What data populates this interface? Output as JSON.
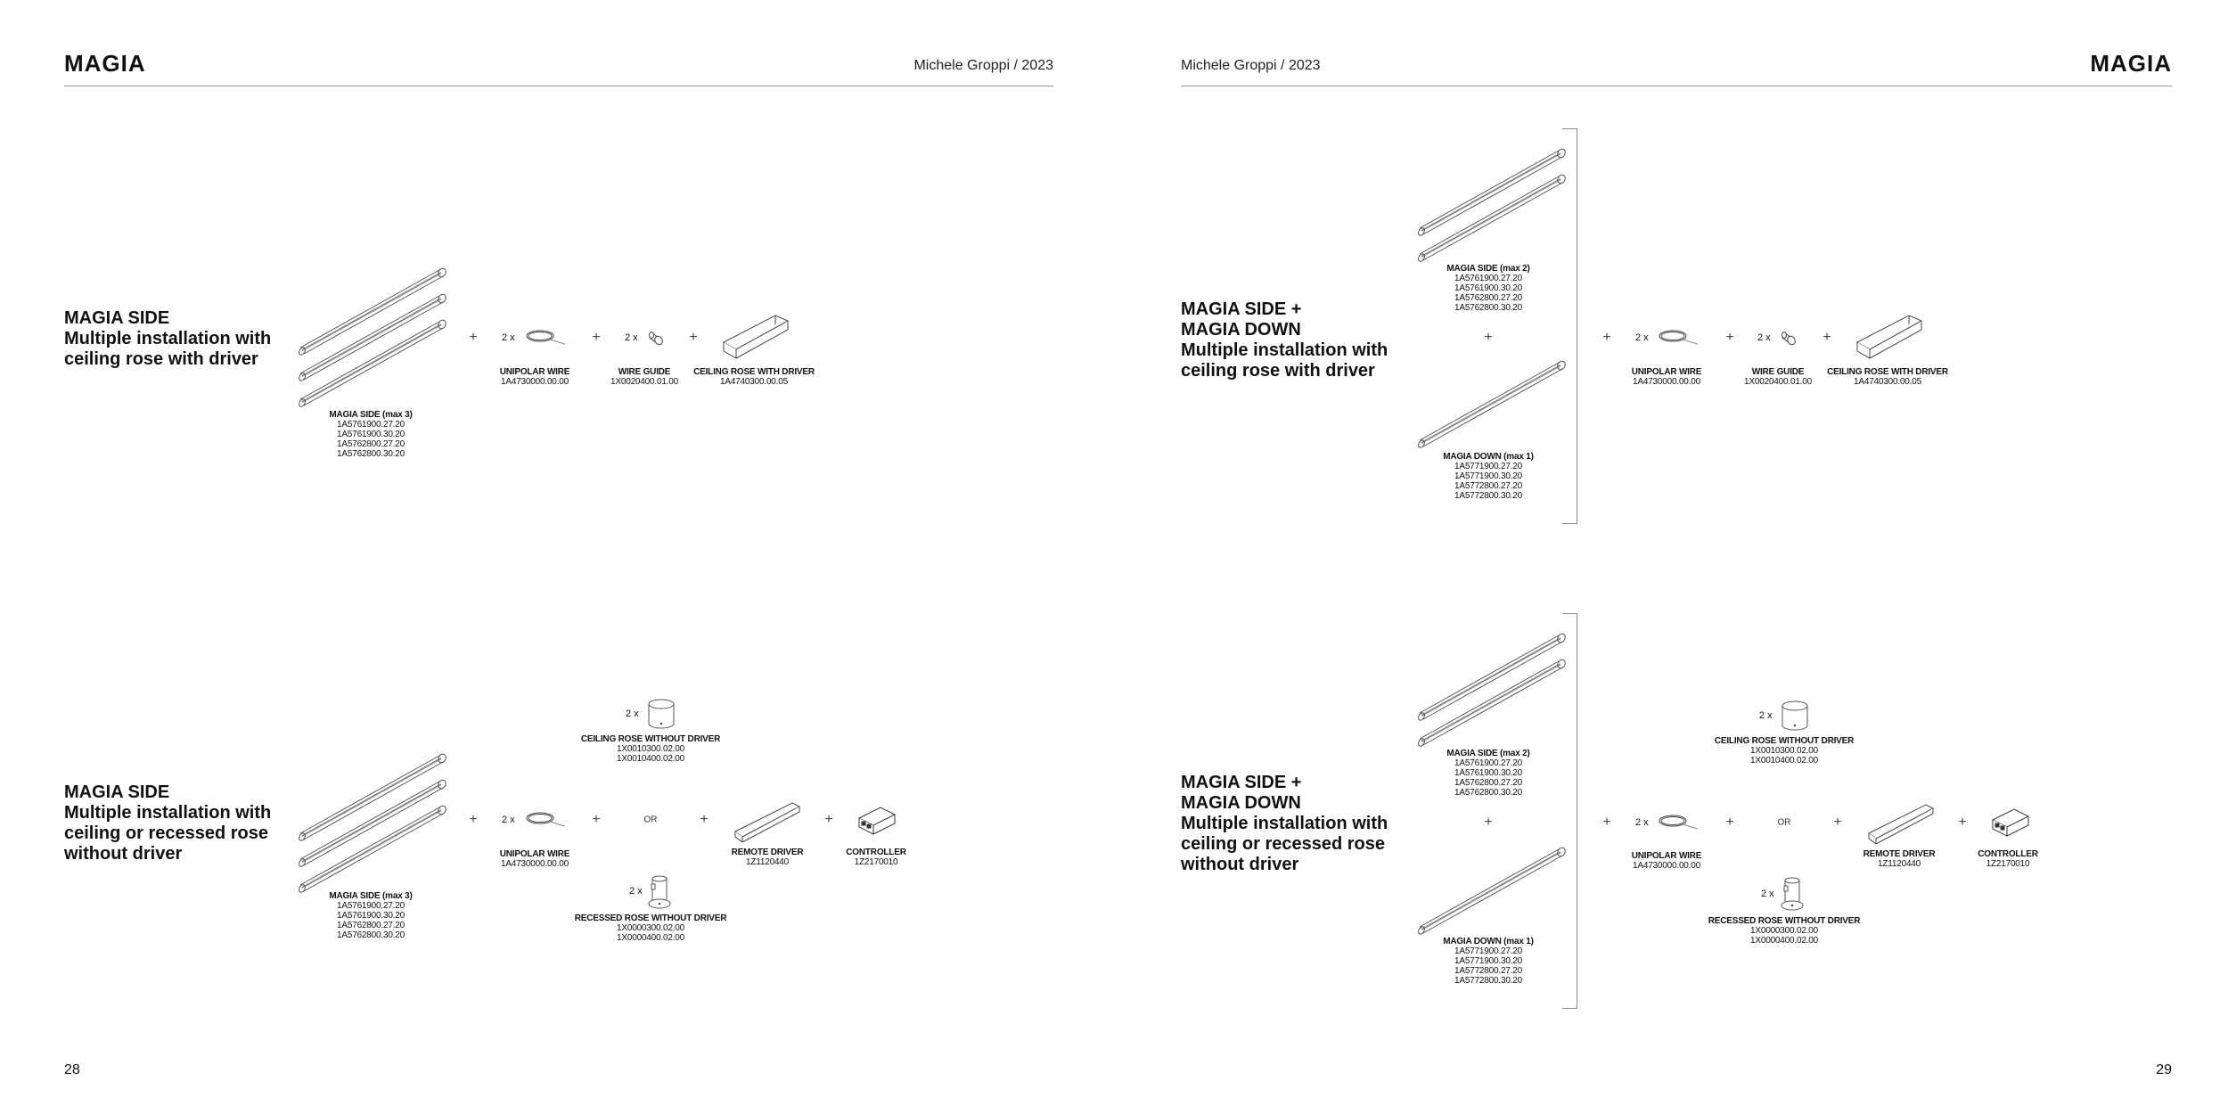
{
  "pages": [
    {
      "brand": "MAGIA",
      "author": "Michele Groppi / 2023",
      "page_number": "28",
      "sections": [
        {
          "heading": "MAGIA SIDE\nMultiple installation with\nceiling rose with driver",
          "plus": "+",
          "lights": {
            "name": "MAGIA SIDE (max 3)",
            "codes": "1A5761900.27.20\n1A5761900.30.20\n1A5762800.27.20\n1A5762800.30.20"
          },
          "wire": {
            "qty": "2 x",
            "name": "UNIPOLAR WIRE",
            "code": "1A4730000.00.00"
          },
          "guide": {
            "qty": "2 x",
            "name": "WIRE GUIDE",
            "code": "1X0020400.01.00"
          },
          "rose_driver": {
            "name": "CEILING ROSE WITH DRIVER",
            "code": "1A4740300.00.05"
          }
        },
        {
          "heading": "MAGIA SIDE\nMultiple installation with\nceiling or recessed rose\nwithout driver",
          "plus": "+",
          "or_label": "OR",
          "lights": {
            "name": "MAGIA SIDE (max 3)",
            "codes": "1A5761900.27.20\n1A5761900.30.20\n1A5762800.27.20\n1A5762800.30.20"
          },
          "wire": {
            "qty": "2 x",
            "name": "UNIPOLAR WIRE",
            "code": "1A4730000.00.00"
          },
          "ceiling_rose": {
            "qty": "2 x",
            "name": "CEILING ROSE WITHOUT DRIVER",
            "codes": "1X0010300.02.00\n1X0010400.02.00"
          },
          "recessed_rose": {
            "qty": "2 x",
            "name": "RECESSED ROSE WITHOUT DRIVER",
            "codes": "1X0000300.02.00\n1X0000400.02.00"
          },
          "remote_driver": {
            "name": "REMOTE DRIVER",
            "code": "1Z1120440"
          },
          "controller": {
            "name": "CONTROLLER",
            "code": "1Z2170010"
          }
        }
      ]
    },
    {
      "brand": "MAGIA",
      "author": "Michele Groppi / 2023",
      "page_number": "29",
      "sections": [
        {
          "heading": "MAGIA SIDE +\nMAGIA DOWN\nMultiple installation with\nceiling rose with driver",
          "plus": "+",
          "side": {
            "name": "MAGIA SIDE (max 2)",
            "codes": "1A5761900.27.20\n1A5761900.30.20\n1A5762800.27.20\n1A5762800.30.20"
          },
          "down": {
            "name": "MAGIA DOWN (max 1)",
            "codes": "1A5771900.27.20\n1A5771900.30.20\n1A5772800.27.20\n1A5772800.30.20"
          },
          "wire": {
            "qty": "2 x",
            "name": "UNIPOLAR WIRE",
            "code": "1A4730000.00.00"
          },
          "guide": {
            "qty": "2 x",
            "name": "WIRE GUIDE",
            "code": "1X0020400.01.00"
          },
          "rose_driver": {
            "name": "CEILING ROSE WITH DRIVER",
            "code": "1A4740300.00.05"
          }
        },
        {
          "heading": "MAGIA SIDE +\nMAGIA DOWN\nMultiple installation with\nceiling or recessed rose\nwithout driver",
          "plus": "+",
          "or_label": "OR",
          "side": {
            "name": "MAGIA SIDE (max 2)",
            "codes": "1A5761900.27.20\n1A5761900.30.20\n1A5762800.27.20\n1A5762800.30.20"
          },
          "down": {
            "name": "MAGIA DOWN (max 1)",
            "codes": "1A5771900.27.20\n1A5771900.30.20\n1A5772800.27.20\n1A5772800.30.20"
          },
          "wire": {
            "qty": "2 x",
            "name": "UNIPOLAR WIRE",
            "code": "1A4730000.00.00"
          },
          "ceiling_rose": {
            "qty": "2 x",
            "name": "CEILING ROSE WITHOUT DRIVER",
            "codes": "1X0010300.02.00\n1X0010400.02.00"
          },
          "recessed_rose": {
            "qty": "2 x",
            "name": "RECESSED ROSE WITHOUT DRIVER",
            "codes": "1X0000300.02.00\n1X0000400.02.00"
          },
          "remote_driver": {
            "name": "REMOTE DRIVER",
            "code": "1Z1120440"
          },
          "controller": {
            "name": "CONTROLLER",
            "code": "1Z2170010"
          }
        }
      ]
    }
  ]
}
